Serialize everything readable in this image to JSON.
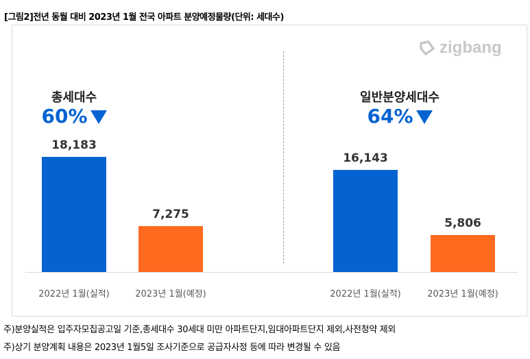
{
  "title": "[그림2]전년 동월 대비 2023년 1월 전국 아파트 분양예정물량(단위: 세대수)",
  "logo": "zigbang",
  "colors": {
    "actual": "#0563d1",
    "planned": "#ff6a1f"
  },
  "chart_data": {
    "type": "bar",
    "groups": [
      {
        "name": "총세대수",
        "change": "60%",
        "direction": "down",
        "categories": [
          "2022년 1월(실적)",
          "2023년 1월(예정)"
        ],
        "values": [
          18183,
          7275
        ],
        "labels": [
          "18,183",
          "7,275"
        ]
      },
      {
        "name": "일반분양세대수",
        "change": "64%",
        "direction": "down",
        "categories": [
          "2022년 1월(실적)",
          "2023년 1월(예정)"
        ],
        "values": [
          16143,
          5806
        ],
        "labels": [
          "16,143",
          "5,806"
        ]
      }
    ],
    "ylim": [
      0,
      20000
    ],
    "grid": false
  },
  "notes": [
    "주)분양실적은 입주자모집공고일 기준,총세대수 30세대 미만 아파트단지,임대아파트단지 제외,사전청약 제외",
    "주)상기 분양계획 내용은 2023년 1월5일 조사기준으로 공급자사정 등에 따라 변경될 수 있음"
  ]
}
